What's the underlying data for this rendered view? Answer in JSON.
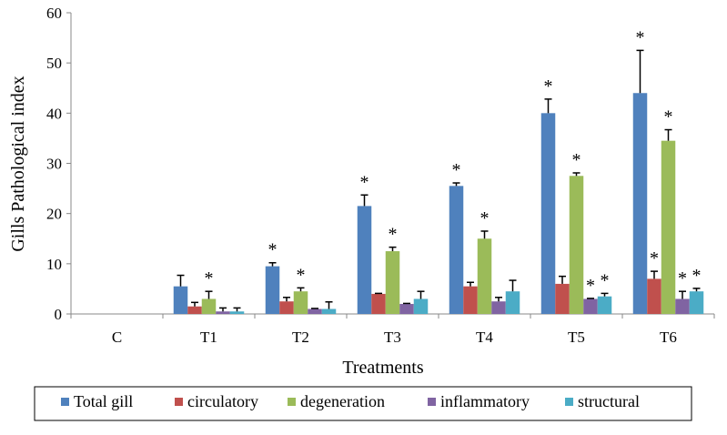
{
  "chart_data": {
    "type": "bar",
    "title": "",
    "xlabel": "Treatments",
    "ylabel": "Gills Pathological index",
    "ylim": [
      0,
      60
    ],
    "yticks": [
      0,
      10,
      20,
      30,
      40,
      50,
      60
    ],
    "grid": false,
    "legend_position": "bottom",
    "categories": [
      "C",
      "T1",
      "T2",
      "T3",
      "T4",
      "T5",
      "T6"
    ],
    "series": [
      {
        "name": "Total gill",
        "color": "#4F81BD",
        "values": [
          0,
          5.5,
          9.5,
          21.5,
          25.5,
          40,
          44
        ],
        "errors": [
          0,
          2.2,
          0.7,
          2.2,
          0.6,
          2.8,
          8.5
        ],
        "significant": [
          false,
          false,
          true,
          true,
          true,
          true,
          true
        ]
      },
      {
        "name": "circulatory",
        "color": "#C0504D",
        "values": [
          0,
          1.5,
          2.5,
          4,
          5.5,
          6,
          7
        ],
        "errors": [
          0,
          0.8,
          0.8,
          0.1,
          0.8,
          1.5,
          1.5
        ],
        "significant": [
          false,
          false,
          false,
          false,
          false,
          false,
          true
        ]
      },
      {
        "name": "degeneration",
        "color": "#9BBB59",
        "values": [
          0,
          3,
          4.5,
          12.5,
          15,
          27.5,
          34.5
        ],
        "errors": [
          0,
          1.5,
          0.7,
          0.8,
          1.5,
          0.6,
          2.2
        ],
        "significant": [
          false,
          true,
          true,
          true,
          true,
          true,
          true
        ]
      },
      {
        "name": "inflammatory",
        "color": "#8064A2",
        "values": [
          0,
          0.5,
          1,
          2,
          2.5,
          3,
          3
        ],
        "errors": [
          0,
          0.7,
          0.1,
          0.1,
          0.8,
          0.1,
          1.5
        ],
        "significant": [
          false,
          false,
          false,
          false,
          false,
          true,
          true
        ]
      },
      {
        "name": "structural",
        "color": "#4BACC6",
        "values": [
          0,
          0.5,
          1,
          3,
          4.5,
          3.5,
          4.5
        ],
        "errors": [
          0,
          0.7,
          1.4,
          1.5,
          2.2,
          0.6,
          0.6
        ],
        "significant": [
          false,
          false,
          false,
          false,
          false,
          true,
          true
        ]
      }
    ],
    "significance_marker": "*"
  }
}
